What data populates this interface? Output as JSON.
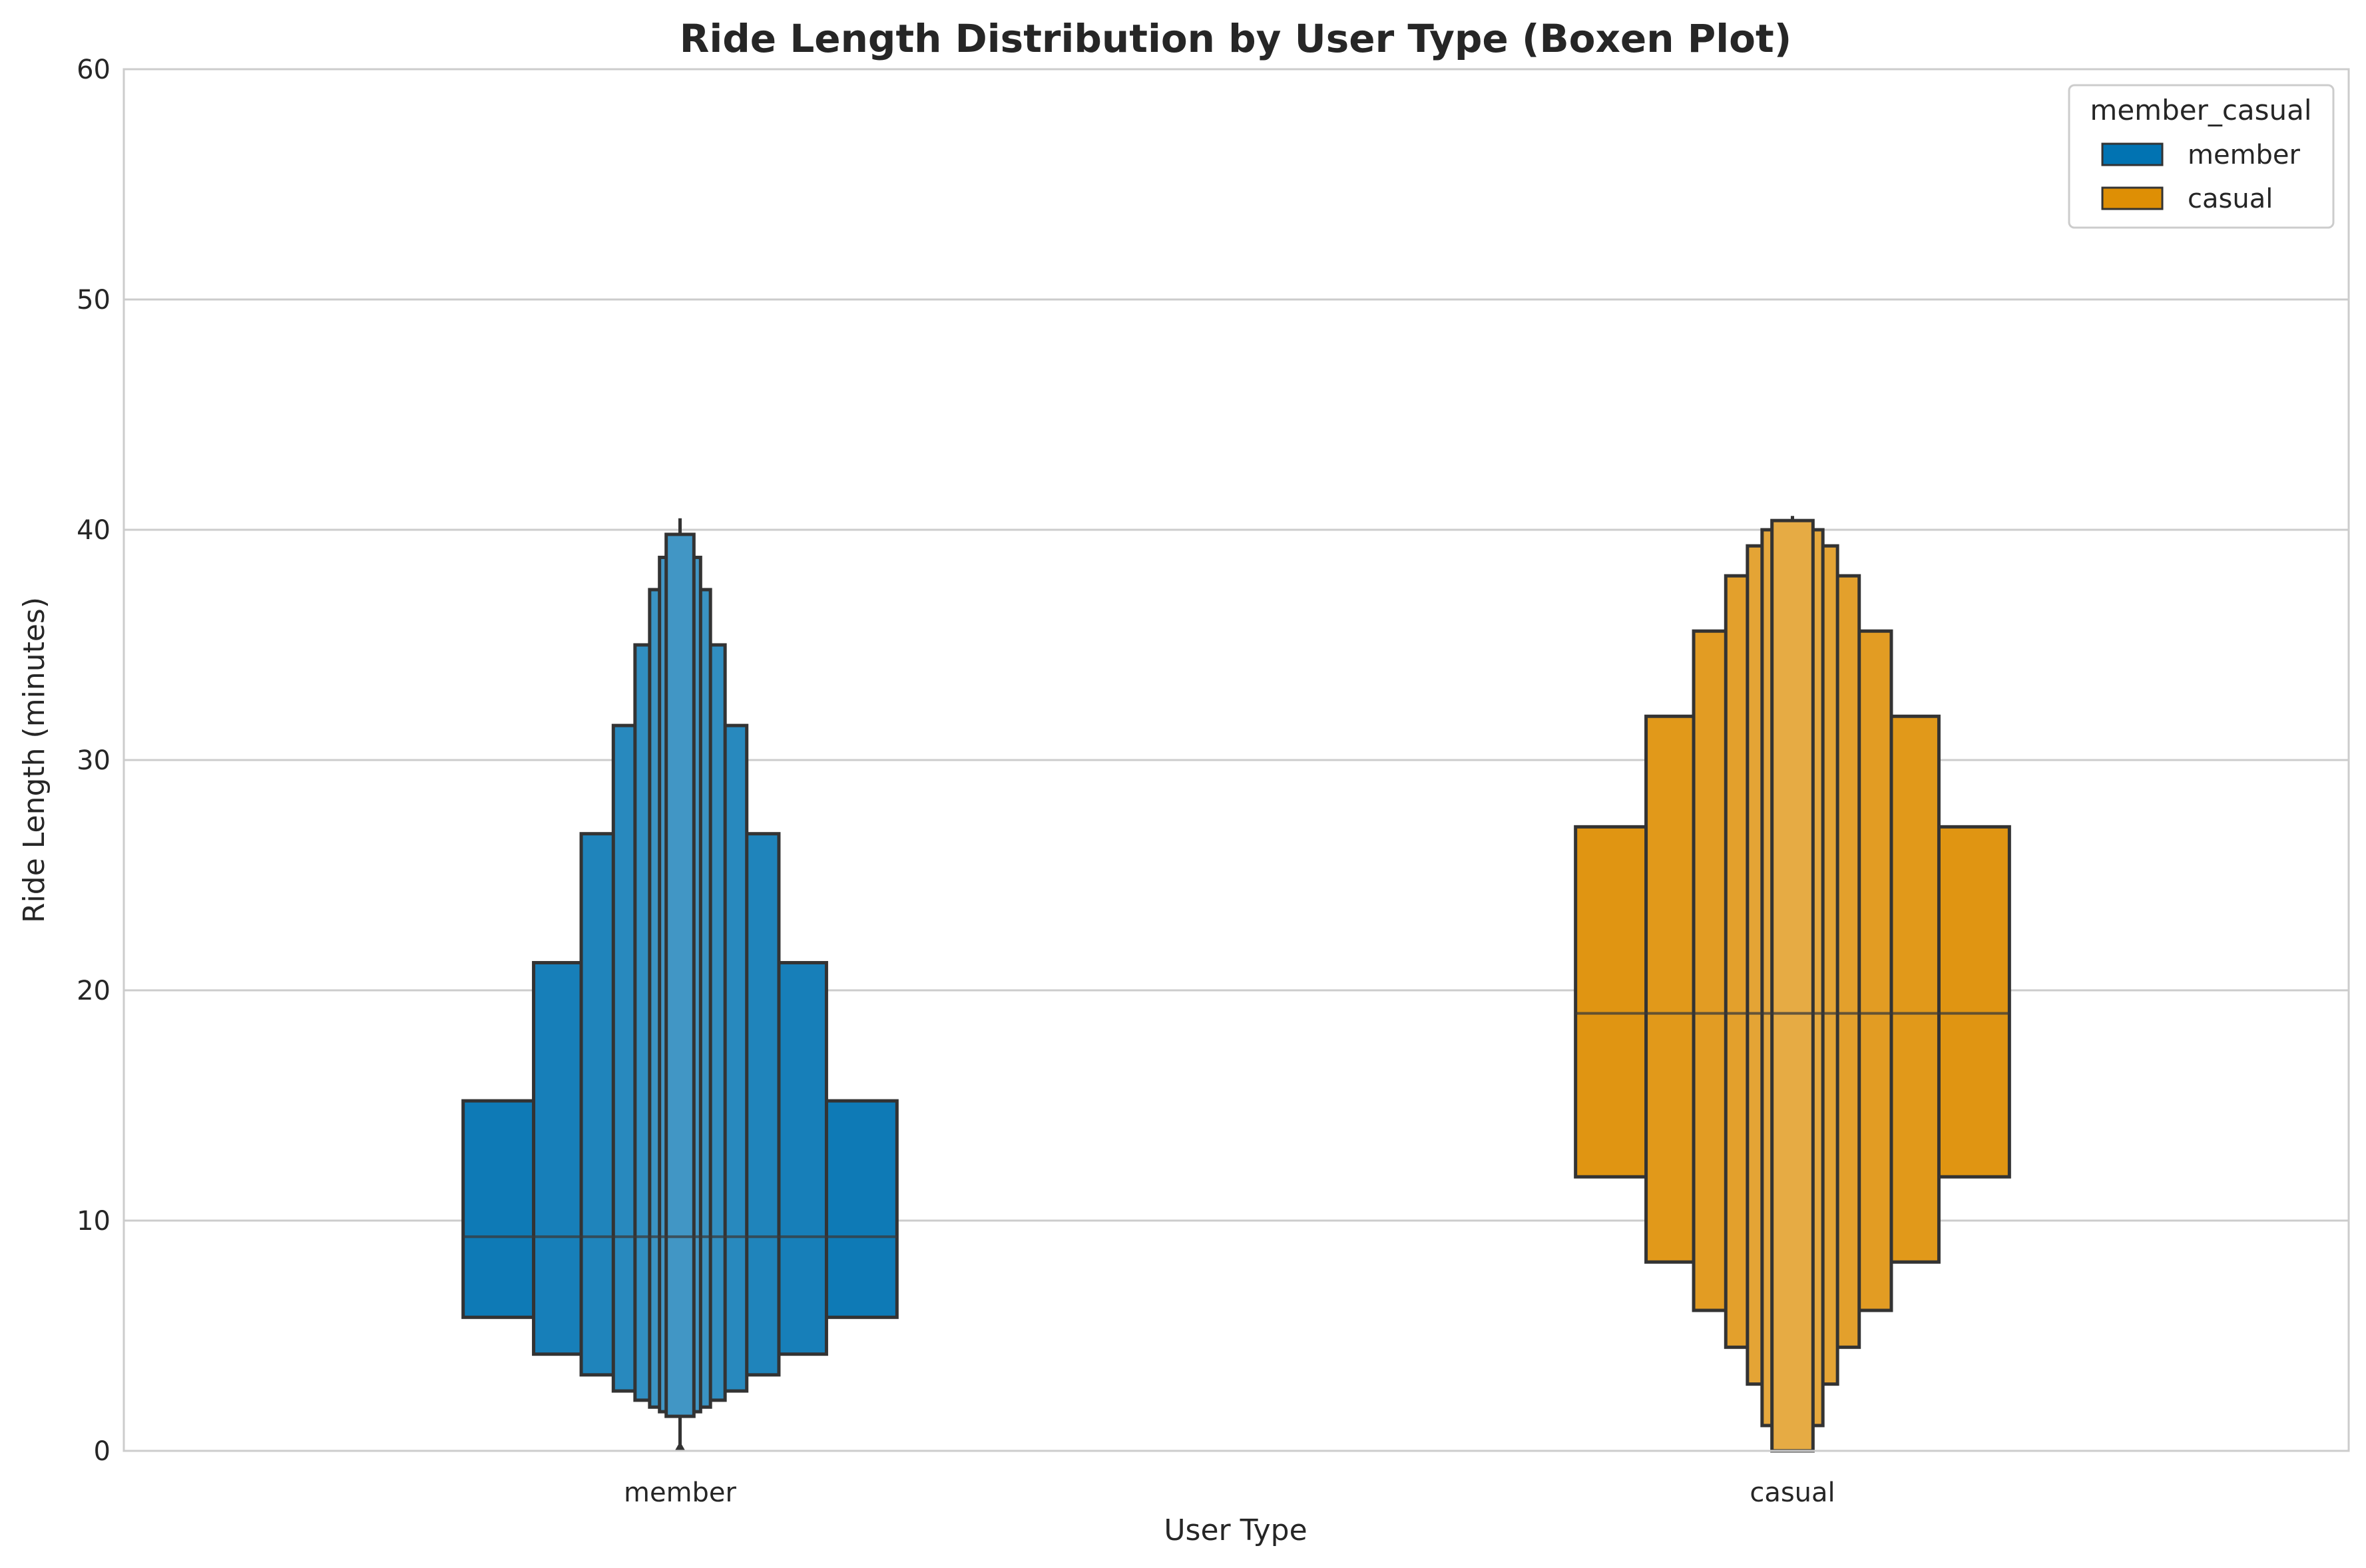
{
  "chart_data": {
    "type": "boxen",
    "title": "Ride Length Distribution by User Type (Boxen Plot)",
    "xlabel": "User Type",
    "ylabel": "Ride Length (minutes)",
    "ylim": [
      0,
      60
    ],
    "yticks": [
      0,
      10,
      20,
      30,
      40,
      50,
      60
    ],
    "categories": [
      "member",
      "casual"
    ],
    "grid": "horizontal",
    "legend": {
      "title": "member_casual",
      "placement": "top-right",
      "entries": [
        "member",
        "casual"
      ]
    },
    "series": [
      {
        "name": "member",
        "color": "#0173b2",
        "median": 9.3,
        "boxes": [
          [
            5.8,
            15.2
          ],
          [
            4.2,
            21.2
          ],
          [
            3.3,
            26.8
          ],
          [
            2.6,
            31.5
          ],
          [
            2.2,
            35.0
          ],
          [
            1.9,
            37.4
          ],
          [
            1.7,
            38.8
          ],
          [
            1.5,
            39.8
          ]
        ],
        "whisker": [
          0.0,
          40.5
        ]
      },
      {
        "name": "casual",
        "color": "#de8f05",
        "median": 19.0,
        "boxes": [
          [
            11.9,
            27.1
          ],
          [
            8.2,
            31.9
          ],
          [
            6.1,
            35.6
          ],
          [
            4.5,
            38.0
          ],
          [
            2.9,
            39.3
          ],
          [
            1.1,
            40.0
          ],
          [
            0.0,
            40.4
          ]
        ],
        "whisker": [
          0.0,
          40.6
        ]
      }
    ]
  }
}
